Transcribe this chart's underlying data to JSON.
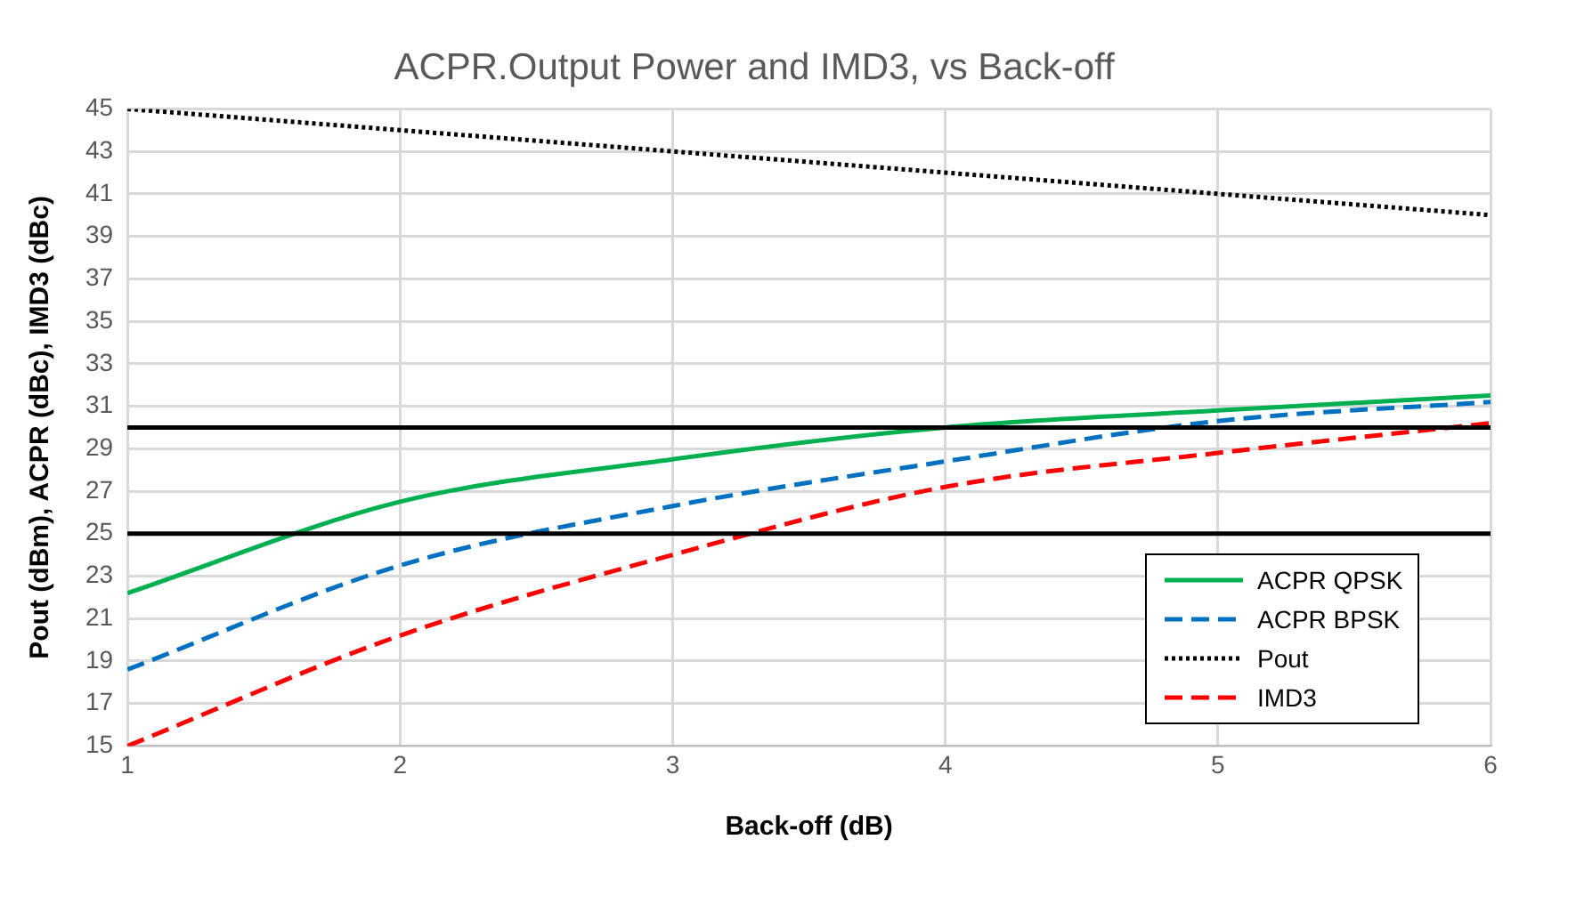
{
  "chart_data": {
    "type": "line",
    "title": "ACPR.Output Power and IMD3, vs Back-off",
    "xlabel": "Back-off (dB)",
    "ylabel": "Pout (dBm), ACPR (dBc), IMD3 (dBc)",
    "x": [
      1,
      2,
      3,
      4,
      5,
      6
    ],
    "xlim": [
      1,
      6
    ],
    "xticks": [
      1,
      2,
      3,
      4,
      5,
      6
    ],
    "ylim": [
      15,
      45
    ],
    "yticks": [
      15,
      17,
      19,
      21,
      23,
      25,
      27,
      29,
      31,
      33,
      35,
      37,
      39,
      41,
      43,
      45
    ],
    "grid": true,
    "legend": "bottom right",
    "marker": "none",
    "series": [
      {
        "name": "ACPR QPSK",
        "color": "#00b050",
        "line_style": "solid",
        "values": [
          22.2,
          26.5,
          28.5,
          30.0,
          30.8,
          31.5
        ]
      },
      {
        "name": "ACPR BPSK",
        "color": "#0070c0",
        "line_style": "dashed",
        "values": [
          18.6,
          23.5,
          26.3,
          28.4,
          30.3,
          31.2
        ]
      },
      {
        "name": "Pout",
        "color": "#000000",
        "line_style": "dotted",
        "values": [
          45,
          44,
          43,
          42,
          41,
          40
        ]
      },
      {
        "name": "IMD3",
        "color": "#ff0000",
        "line_style": "dashed",
        "values": [
          15,
          20.2,
          24.0,
          27.2,
          28.8,
          30.2
        ]
      }
    ],
    "ref_lines": [
      {
        "axis": "y",
        "value": 30,
        "color": "#000000"
      },
      {
        "axis": "y",
        "value": 25,
        "color": "#000000"
      }
    ]
  }
}
